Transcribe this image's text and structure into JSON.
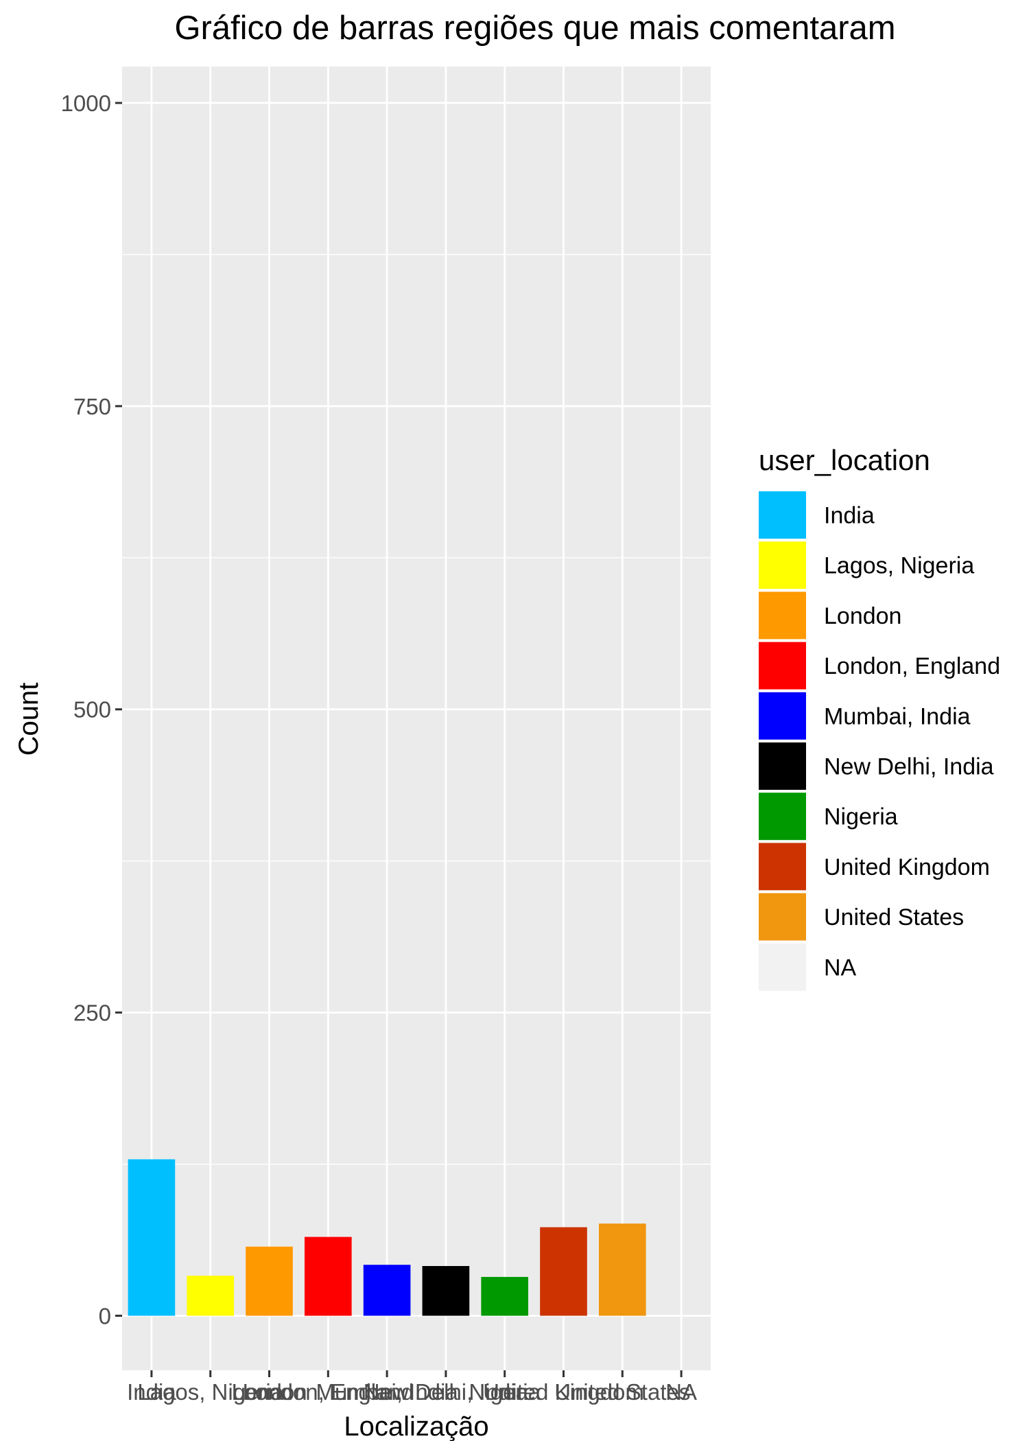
{
  "chart_data": {
    "type": "bar",
    "title": "Gráfico de barras regiões que mais comentaram",
    "xlabel": "Localização",
    "ylabel": "Count",
    "categories": [
      "India",
      "Lagos, Nigeria",
      "London",
      "London, England",
      "Mumbai, India",
      "New Delhi, India",
      "Nigeria",
      "United Kingdom",
      "United States",
      "NA"
    ],
    "values": [
      129,
      33,
      57,
      65,
      42,
      41,
      32,
      73,
      76,
      0
    ],
    "colors": [
      "#00BFFF",
      "#FFFF00",
      "#FF9900",
      "#FF0000",
      "#0000FF",
      "#000000",
      "#009900",
      "#CC3300",
      "#F0960F",
      "#F2F2F2"
    ],
    "ylim": [
      -45,
      1030
    ],
    "yticks": [
      0,
      250,
      500,
      750,
      1000
    ],
    "ytick_labels": [
      "0",
      "250",
      "500",
      "750",
      "1000"
    ],
    "grid": true,
    "panel_background": "#EBEBEB",
    "legend": {
      "title": "user_location",
      "position": "right",
      "entries": [
        "India",
        "Lagos, Nigeria",
        "London",
        "London, England",
        "Mumbai, India",
        "New Delhi, India",
        "Nigeria",
        "United Kingdom",
        "United States",
        "NA"
      ]
    }
  }
}
